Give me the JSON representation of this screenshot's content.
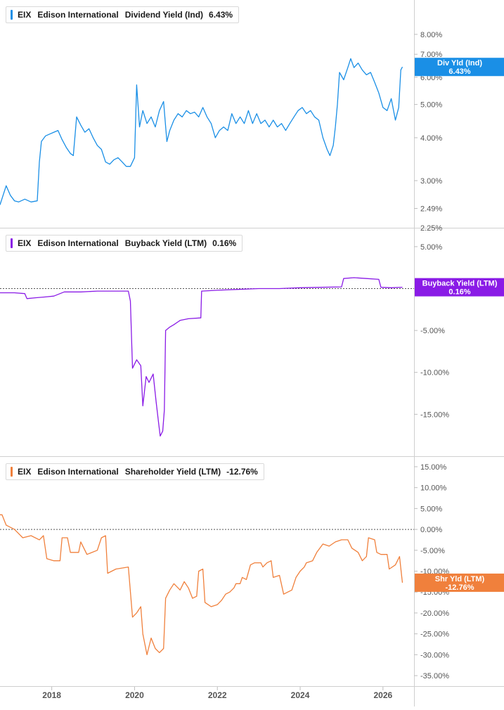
{
  "panels": [
    {
      "legend": {
        "ticker": "EIX",
        "company": "Edison International",
        "metric": "Dividend Yield (Ind)",
        "value": "6.43%"
      },
      "color": "#1a8fe6",
      "badge": {
        "line1": "Div Yld (Ind)",
        "line2": "6.43%"
      }
    },
    {
      "legend": {
        "ticker": "EIX",
        "company": "Edison International",
        "metric": "Buyback Yield (LTM)",
        "value": "0.16%"
      },
      "color": "#8a1be6",
      "badge": {
        "line1": "Buyback Yield (LTM)",
        "line2": "0.16%"
      }
    },
    {
      "legend": {
        "ticker": "EIX",
        "company": "Edison International",
        "metric": "Shareholder Yield (LTM)",
        "value": "-12.76%"
      },
      "color": "#f0803c",
      "badge": {
        "line1": "Shr Yld (LTM)",
        "line2": "-12.76%"
      }
    }
  ],
  "chart_data": [
    {
      "type": "line",
      "scale": "log",
      "ylim": [
        2.25,
        9.7
      ],
      "y_ticks": [
        "8.00%",
        "7.00%",
        "6.00%",
        "5.00%",
        "4.00%",
        "3.00%",
        "2.49%"
      ],
      "y_tick_values": [
        8.0,
        7.0,
        6.0,
        5.0,
        4.0,
        3.0,
        2.49
      ],
      "x_ticks": [
        "2018",
        "2020",
        "2022",
        "2024",
        "2026"
      ],
      "series": [
        {
          "name": "Dividend Yield (Ind)",
          "points": [
            [
              2016.75,
              2.55
            ],
            [
              2016.9,
              2.9
            ],
            [
              2017.0,
              2.72
            ],
            [
              2017.1,
              2.62
            ],
            [
              2017.2,
              2.6
            ],
            [
              2017.35,
              2.65
            ],
            [
              2017.5,
              2.6
            ],
            [
              2017.65,
              2.62
            ],
            [
              2017.7,
              3.4
            ],
            [
              2017.75,
              3.9
            ],
            [
              2017.85,
              4.05
            ],
            [
              2017.95,
              4.1
            ],
            [
              2018.05,
              4.15
            ],
            [
              2018.15,
              4.2
            ],
            [
              2018.25,
              3.95
            ],
            [
              2018.35,
              3.75
            ],
            [
              2018.45,
              3.6
            ],
            [
              2018.52,
              3.55
            ],
            [
              2018.6,
              4.6
            ],
            [
              2018.7,
              4.35
            ],
            [
              2018.8,
              4.15
            ],
            [
              2018.9,
              4.25
            ],
            [
              2019.0,
              4.0
            ],
            [
              2019.1,
              3.8
            ],
            [
              2019.2,
              3.7
            ],
            [
              2019.3,
              3.4
            ],
            [
              2019.4,
              3.35
            ],
            [
              2019.5,
              3.45
            ],
            [
              2019.6,
              3.5
            ],
            [
              2019.7,
              3.4
            ],
            [
              2019.8,
              3.3
            ],
            [
              2019.9,
              3.3
            ],
            [
              2020.0,
              3.5
            ],
            [
              2020.05,
              5.7
            ],
            [
              2020.12,
              4.3
            ],
            [
              2020.2,
              4.8
            ],
            [
              2020.3,
              4.4
            ],
            [
              2020.4,
              4.6
            ],
            [
              2020.5,
              4.3
            ],
            [
              2020.6,
              4.8
            ],
            [
              2020.7,
              5.1
            ],
            [
              2020.78,
              3.9
            ],
            [
              2020.85,
              4.2
            ],
            [
              2020.95,
              4.5
            ],
            [
              2021.05,
              4.7
            ],
            [
              2021.15,
              4.6
            ],
            [
              2021.25,
              4.8
            ],
            [
              2021.35,
              4.7
            ],
            [
              2021.45,
              4.75
            ],
            [
              2021.55,
              4.6
            ],
            [
              2021.65,
              4.9
            ],
            [
              2021.75,
              4.6
            ],
            [
              2021.85,
              4.4
            ],
            [
              2021.95,
              4.0
            ],
            [
              2022.05,
              4.2
            ],
            [
              2022.15,
              4.3
            ],
            [
              2022.25,
              4.2
            ],
            [
              2022.35,
              4.7
            ],
            [
              2022.45,
              4.4
            ],
            [
              2022.55,
              4.6
            ],
            [
              2022.65,
              4.4
            ],
            [
              2022.75,
              4.8
            ],
            [
              2022.85,
              4.4
            ],
            [
              2022.95,
              4.7
            ],
            [
              2023.05,
              4.4
            ],
            [
              2023.15,
              4.5
            ],
            [
              2023.25,
              4.3
            ],
            [
              2023.35,
              4.5
            ],
            [
              2023.45,
              4.3
            ],
            [
              2023.55,
              4.4
            ],
            [
              2023.65,
              4.2
            ],
            [
              2023.75,
              4.4
            ],
            [
              2023.85,
              4.6
            ],
            [
              2023.95,
              4.8
            ],
            [
              2024.05,
              4.9
            ],
            [
              2024.15,
              4.7
            ],
            [
              2024.25,
              4.8
            ],
            [
              2024.35,
              4.6
            ],
            [
              2024.45,
              4.5
            ],
            [
              2024.55,
              4.0
            ],
            [
              2024.65,
              3.7
            ],
            [
              2024.72,
              3.55
            ],
            [
              2024.8,
              3.8
            ],
            [
              2024.85,
              4.3
            ],
            [
              2024.9,
              5.0
            ],
            [
              2024.95,
              6.2
            ],
            [
              2025.05,
              5.9
            ],
            [
              2025.15,
              6.4
            ],
            [
              2025.22,
              6.8
            ],
            [
              2025.3,
              6.4
            ],
            [
              2025.4,
              6.6
            ],
            [
              2025.5,
              6.3
            ],
            [
              2025.6,
              6.1
            ],
            [
              2025.7,
              6.2
            ],
            [
              2025.8,
              5.8
            ],
            [
              2025.9,
              5.4
            ],
            [
              2026.0,
              4.9
            ],
            [
              2026.1,
              4.8
            ],
            [
              2026.2,
              5.2
            ],
            [
              2026.3,
              4.5
            ],
            [
              2026.38,
              4.9
            ],
            [
              2026.43,
              6.3
            ],
            [
              2026.47,
              6.43
            ]
          ]
        }
      ]
    },
    {
      "type": "line",
      "ylim": [
        -19.5,
        6.5
      ],
      "y_ticks": [
        "5.00%",
        "-5.00%",
        "-10.00%",
        "-15.00%"
      ],
      "y_tick_values": [
        5.0,
        -5.0,
        -10.0,
        -15.0
      ],
      "zero_line": 0.0,
      "x_ticks": [
        "2018",
        "2020",
        "2022",
        "2024",
        "2026"
      ],
      "series": [
        {
          "name": "Buyback Yield (LTM)",
          "points": [
            [
              2016.75,
              -0.5
            ],
            [
              2017.1,
              -0.5
            ],
            [
              2017.35,
              -0.6
            ],
            [
              2017.4,
              -1.2
            ],
            [
              2017.6,
              -1.1
            ],
            [
              2017.85,
              -1.0
            ],
            [
              2018.05,
              -0.9
            ],
            [
              2018.3,
              -0.4
            ],
            [
              2018.7,
              -0.4
            ],
            [
              2019.1,
              -0.3
            ],
            [
              2019.5,
              -0.3
            ],
            [
              2019.85,
              -0.3
            ],
            [
              2019.9,
              -1.5
            ],
            [
              2019.95,
              -9.5
            ],
            [
              2020.05,
              -8.5
            ],
            [
              2020.15,
              -9.2
            ],
            [
              2020.2,
              -14.0
            ],
            [
              2020.28,
              -10.5
            ],
            [
              2020.35,
              -11.2
            ],
            [
              2020.45,
              -10.2
            ],
            [
              2020.52,
              -13.5
            ],
            [
              2020.58,
              -16.0
            ],
            [
              2020.62,
              -17.6
            ],
            [
              2020.68,
              -17.0
            ],
            [
              2020.72,
              -14.5
            ],
            [
              2020.75,
              -5.0
            ],
            [
              2020.85,
              -4.6
            ],
            [
              2020.95,
              -4.3
            ],
            [
              2021.1,
              -3.8
            ],
            [
              2021.3,
              -3.6
            ],
            [
              2021.6,
              -3.5
            ],
            [
              2021.62,
              -0.3
            ],
            [
              2022.0,
              -0.2
            ],
            [
              2022.5,
              -0.1
            ],
            [
              2023.0,
              0.0
            ],
            [
              2023.5,
              0.0
            ],
            [
              2024.0,
              0.1
            ],
            [
              2024.5,
              0.15
            ],
            [
              2025.0,
              0.2
            ],
            [
              2025.05,
              1.2
            ],
            [
              2025.3,
              1.3
            ],
            [
              2025.6,
              1.2
            ],
            [
              2025.9,
              1.1
            ],
            [
              2025.95,
              0.15
            ],
            [
              2026.2,
              0.1
            ],
            [
              2026.47,
              0.16
            ]
          ]
        }
      ]
    },
    {
      "type": "line",
      "ylim": [
        -36.5,
        16.0
      ],
      "y_ticks": [
        "15.00%",
        "10.00%",
        "5.00%",
        "0.00%",
        "-5.00%",
        "-10.00%",
        "-15.00%",
        "-20.00%",
        "-25.00%",
        "-30.00%",
        "-35.00%"
      ],
      "y_tick_values": [
        15,
        10,
        5,
        0,
        -5,
        -10,
        -15,
        -20,
        -25,
        -30,
        -35
      ],
      "zero_line": 0.0,
      "x_ticks": [
        "2018",
        "2020",
        "2022",
        "2024",
        "2026"
      ],
      "series": [
        {
          "name": "Shareholder Yield (LTM)",
          "points": [
            [
              2016.75,
              3.5
            ],
            [
              2016.8,
              3.5
            ],
            [
              2016.9,
              1.0
            ],
            [
              2017.1,
              0.0
            ],
            [
              2017.3,
              -2.0
            ],
            [
              2017.5,
              -1.5
            ],
            [
              2017.7,
              -2.5
            ],
            [
              2017.8,
              -1.5
            ],
            [
              2017.88,
              -7.0
            ],
            [
              2018.05,
              -7.5
            ],
            [
              2018.2,
              -7.5
            ],
            [
              2018.25,
              -2.0
            ],
            [
              2018.38,
              -2.0
            ],
            [
              2018.45,
              -5.5
            ],
            [
              2018.65,
              -5.5
            ],
            [
              2018.7,
              -3.0
            ],
            [
              2018.85,
              -6.0
            ],
            [
              2019.1,
              -5.0
            ],
            [
              2019.2,
              -2.0
            ],
            [
              2019.3,
              -1.5
            ],
            [
              2019.35,
              -10.5
            ],
            [
              2019.55,
              -9.5
            ],
            [
              2019.85,
              -9.0
            ],
            [
              2019.95,
              -21.0
            ],
            [
              2020.05,
              -20.0
            ],
            [
              2020.15,
              -18.5
            ],
            [
              2020.2,
              -25.0
            ],
            [
              2020.3,
              -30.0
            ],
            [
              2020.4,
              -26.0
            ],
            [
              2020.5,
              -28.5
            ],
            [
              2020.6,
              -29.5
            ],
            [
              2020.7,
              -28.5
            ],
            [
              2020.75,
              -16.5
            ],
            [
              2020.85,
              -14.5
            ],
            [
              2020.95,
              -13.0
            ],
            [
              2021.1,
              -14.5
            ],
            [
              2021.2,
              -12.5
            ],
            [
              2021.3,
              -14.0
            ],
            [
              2021.4,
              -16.5
            ],
            [
              2021.5,
              -16.0
            ],
            [
              2021.55,
              -10.0
            ],
            [
              2021.65,
              -9.5
            ],
            [
              2021.7,
              -17.5
            ],
            [
              2021.85,
              -18.5
            ],
            [
              2022.0,
              -18.0
            ],
            [
              2022.1,
              -17.0
            ],
            [
              2022.2,
              -15.5
            ],
            [
              2022.3,
              -15.0
            ],
            [
              2022.4,
              -14.0
            ],
            [
              2022.45,
              -13.0
            ],
            [
              2022.55,
              -13.0
            ],
            [
              2022.6,
              -11.5
            ],
            [
              2022.7,
              -12.0
            ],
            [
              2022.8,
              -8.5
            ],
            [
              2022.9,
              -8.0
            ],
            [
              2023.05,
              -8.0
            ],
            [
              2023.1,
              -9.0
            ],
            [
              2023.2,
              -8.0
            ],
            [
              2023.3,
              -7.5
            ],
            [
              2023.35,
              -11.5
            ],
            [
              2023.5,
              -11.0
            ],
            [
              2023.6,
              -15.5
            ],
            [
              2023.8,
              -14.5
            ],
            [
              2023.9,
              -11.5
            ],
            [
              2024.0,
              -10.0
            ],
            [
              2024.1,
              -9.0
            ],
            [
              2024.15,
              -8.0
            ],
            [
              2024.3,
              -7.5
            ],
            [
              2024.4,
              -5.5
            ],
            [
              2024.55,
              -3.5
            ],
            [
              2024.7,
              -4.0
            ],
            [
              2024.85,
              -3.0
            ],
            [
              2025.0,
              -2.5
            ],
            [
              2025.15,
              -2.5
            ],
            [
              2025.25,
              -4.5
            ],
            [
              2025.4,
              -5.5
            ],
            [
              2025.5,
              -7.5
            ],
            [
              2025.6,
              -6.5
            ],
            [
              2025.65,
              -2.0
            ],
            [
              2025.8,
              -2.5
            ],
            [
              2025.85,
              -5.5
            ],
            [
              2025.95,
              -6.0
            ],
            [
              2026.1,
              -6.0
            ],
            [
              2026.15,
              -9.5
            ],
            [
              2026.3,
              -8.5
            ],
            [
              2026.4,
              -6.5
            ],
            [
              2026.45,
              -11.0
            ],
            [
              2026.47,
              -12.76
            ]
          ]
        }
      ]
    }
  ]
}
